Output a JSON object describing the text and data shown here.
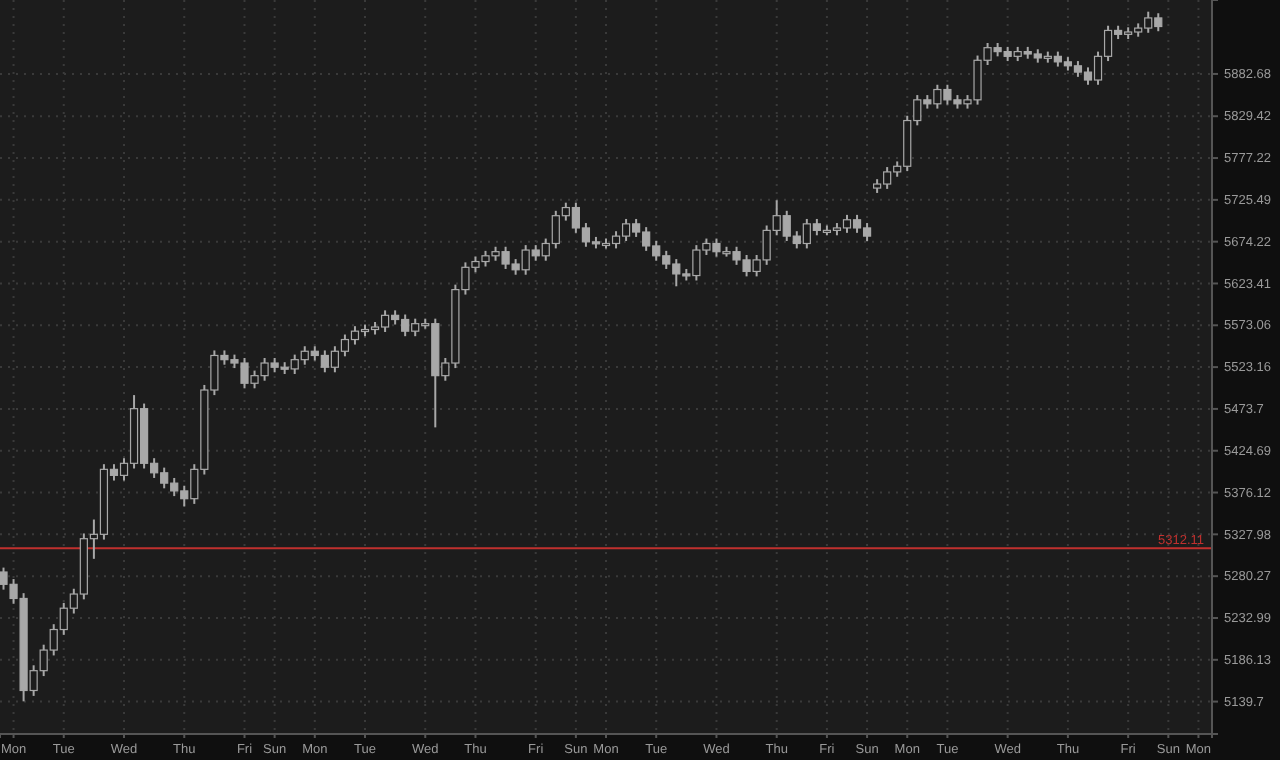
{
  "chart_data": {
    "type": "candlestick",
    "color": "#a8a8a8",
    "log": true,
    "grid": true,
    "ylim": [
      5104,
      5977
    ],
    "yticks": [
      5139.7,
      5186.13,
      5232.99,
      5280.27,
      5327.98,
      5376.12,
      5424.69,
      5473.7,
      5523.16,
      5573.06,
      5623.41,
      5674.22,
      5725.49,
      5777.22,
      5829.42,
      5882.68
    ],
    "ref_lines": [
      {
        "axis": "y",
        "value": 5312.11,
        "label": "5312.11",
        "color": "#c0302e"
      }
    ],
    "categories": [
      null,
      "Mon",
      null,
      null,
      null,
      null,
      "Tue",
      null,
      null,
      null,
      null,
      null,
      "Wed",
      null,
      null,
      null,
      null,
      null,
      "Thu",
      null,
      null,
      null,
      null,
      null,
      "Fri",
      null,
      null,
      "Sun",
      null,
      null,
      null,
      "Mon",
      null,
      null,
      null,
      null,
      "Tue",
      null,
      null,
      null,
      null,
      null,
      "Wed",
      null,
      null,
      null,
      null,
      "Thu",
      null,
      null,
      null,
      null,
      null,
      "Fri",
      null,
      null,
      null,
      "Sun",
      null,
      null,
      "Mon",
      null,
      null,
      null,
      null,
      "Tue",
      null,
      null,
      null,
      null,
      null,
      "Wed",
      null,
      null,
      null,
      null,
      null,
      "Thu",
      null,
      null,
      null,
      null,
      "Fri",
      null,
      null,
      null,
      "Sun",
      null,
      null,
      null,
      "Mon",
      null,
      null,
      null,
      "Tue",
      null,
      null,
      null,
      null,
      null,
      "Wed",
      null,
      null,
      null,
      null,
      null,
      "Thu",
      null,
      null,
      null,
      null,
      null,
      "Fri",
      null,
      null,
      null,
      "Sun",
      null,
      null,
      "Mon",
      null
    ],
    "ohlc": [
      [
        5285,
        5290,
        5265,
        5271
      ],
      [
        5271,
        5277,
        5249,
        5255
      ],
      [
        5255,
        5261,
        5140,
        5152
      ],
      [
        5152,
        5180,
        5146,
        5174
      ],
      [
        5174,
        5203,
        5168,
        5197
      ],
      [
        5197,
        5226,
        5191,
        5220
      ],
      [
        5220,
        5250,
        5214,
        5244
      ],
      [
        5244,
        5266,
        5238,
        5260
      ],
      [
        5260,
        5329,
        5254,
        5323
      ],
      [
        5323,
        5345,
        5300,
        5328
      ],
      [
        5328,
        5409,
        5322,
        5403
      ],
      [
        5403,
        5409,
        5390,
        5396
      ],
      [
        5396,
        5416,
        5390,
        5410
      ],
      [
        5410,
        5490,
        5404,
        5474
      ],
      [
        5474,
        5480,
        5404,
        5410
      ],
      [
        5410,
        5416,
        5393,
        5399
      ],
      [
        5399,
        5405,
        5381,
        5387
      ],
      [
        5387,
        5393,
        5372,
        5378
      ],
      [
        5378,
        5384,
        5360,
        5369
      ],
      [
        5369,
        5409,
        5363,
        5403
      ],
      [
        5403,
        5502,
        5397,
        5496
      ],
      [
        5496,
        5543,
        5490,
        5537
      ],
      [
        5537,
        5543,
        5526,
        5532
      ],
      [
        5532,
        5538,
        5522,
        5528
      ],
      [
        5528,
        5534,
        5498,
        5504
      ],
      [
        5504,
        5519,
        5498,
        5513
      ],
      [
        5513,
        5534,
        5507,
        5528
      ],
      [
        5528,
        5534,
        5517,
        5523
      ],
      [
        5523,
        5529,
        5515,
        5521
      ],
      [
        5521,
        5538,
        5515,
        5532
      ],
      [
        5532,
        5548,
        5526,
        5542
      ],
      [
        5542,
        5548,
        5531,
        5537
      ],
      [
        5537,
        5543,
        5517,
        5523
      ],
      [
        5523,
        5548,
        5517,
        5542
      ],
      [
        5542,
        5562,
        5536,
        5556
      ],
      [
        5556,
        5572,
        5550,
        5566
      ],
      [
        5566,
        5574,
        5560,
        5568
      ],
      [
        5568,
        5577,
        5562,
        5571
      ],
      [
        5571,
        5591,
        5565,
        5585
      ],
      [
        5585,
        5591,
        5574,
        5580
      ],
      [
        5580,
        5586,
        5560,
        5566
      ],
      [
        5566,
        5581,
        5560,
        5575
      ],
      [
        5575,
        5581,
        5569,
        5575
      ],
      [
        5575,
        5581,
        5452,
        5513
      ],
      [
        5513,
        5534,
        5507,
        5528
      ],
      [
        5528,
        5622,
        5522,
        5616
      ],
      [
        5616,
        5649,
        5610,
        5643
      ],
      [
        5643,
        5656,
        5637,
        5650
      ],
      [
        5650,
        5663,
        5644,
        5657
      ],
      [
        5657,
        5668,
        5651,
        5662
      ],
      [
        5662,
        5668,
        5641,
        5647
      ],
      [
        5647,
        5653,
        5634,
        5640
      ],
      [
        5640,
        5670,
        5634,
        5664
      ],
      [
        5664,
        5670,
        5651,
        5657
      ],
      [
        5657,
        5678,
        5651,
        5672
      ],
      [
        5672,
        5712,
        5666,
        5706
      ],
      [
        5706,
        5722,
        5700,
        5716
      ],
      [
        5716,
        5722,
        5685,
        5691
      ],
      [
        5691,
        5697,
        5668,
        5674
      ],
      [
        5674,
        5680,
        5666,
        5672
      ],
      [
        5672,
        5678,
        5666,
        5672
      ],
      [
        5672,
        5687,
        5666,
        5681
      ],
      [
        5681,
        5702,
        5675,
        5696
      ],
      [
        5696,
        5702,
        5680,
        5686
      ],
      [
        5686,
        5692,
        5663,
        5669
      ],
      [
        5669,
        5675,
        5651,
        5657
      ],
      [
        5657,
        5663,
        5641,
        5647
      ],
      [
        5647,
        5653,
        5620,
        5635
      ],
      [
        5635,
        5641,
        5627,
        5633
      ],
      [
        5633,
        5670,
        5627,
        5664
      ],
      [
        5664,
        5678,
        5658,
        5672
      ],
      [
        5672,
        5678,
        5656,
        5662
      ],
      [
        5662,
        5668,
        5656,
        5662
      ],
      [
        5662,
        5668,
        5646,
        5652
      ],
      [
        5652,
        5658,
        5632,
        5638
      ],
      [
        5638,
        5658,
        5632,
        5652
      ],
      [
        5652,
        5694,
        5646,
        5688
      ],
      [
        5688,
        5725,
        5682,
        5706
      ],
      [
        5706,
        5712,
        5675,
        5681
      ],
      [
        5681,
        5687,
        5666,
        5672
      ],
      [
        5672,
        5702,
        5666,
        5696
      ],
      [
        5696,
        5702,
        5682,
        5688
      ],
      [
        5688,
        5694,
        5682,
        5688
      ],
      [
        5688,
        5697,
        5682,
        5691
      ],
      [
        5691,
        5707,
        5685,
        5701
      ],
      [
        5701,
        5707,
        5685,
        5691
      ],
      [
        5691,
        5697,
        5675,
        5681
      ],
      [
        5740,
        5751,
        5734,
        5745
      ],
      [
        5745,
        5766,
        5739,
        5760
      ],
      [
        5760,
        5773,
        5754,
        5767
      ],
      [
        5767,
        5830,
        5761,
        5824
      ],
      [
        5824,
        5856,
        5818,
        5850
      ],
      [
        5850,
        5856,
        5839,
        5845
      ],
      [
        5845,
        5869,
        5839,
        5863
      ],
      [
        5863,
        5869,
        5844,
        5850
      ],
      [
        5850,
        5856,
        5839,
        5845
      ],
      [
        5845,
        5856,
        5839,
        5850
      ],
      [
        5850,
        5906,
        5844,
        5900
      ],
      [
        5900,
        5922,
        5894,
        5916
      ],
      [
        5916,
        5922,
        5905,
        5911
      ],
      [
        5911,
        5917,
        5899,
        5905
      ],
      [
        5905,
        5917,
        5899,
        5911
      ],
      [
        5911,
        5917,
        5902,
        5908
      ],
      [
        5908,
        5914,
        5897,
        5903
      ],
      [
        5903,
        5911,
        5897,
        5905
      ],
      [
        5905,
        5911,
        5892,
        5898
      ],
      [
        5898,
        5904,
        5887,
        5893
      ],
      [
        5893,
        5899,
        5879,
        5885
      ],
      [
        5885,
        5891,
        5869,
        5875
      ],
      [
        5875,
        5911,
        5869,
        5905
      ],
      [
        5905,
        5944,
        5899,
        5938
      ],
      [
        5938,
        5944,
        5927,
        5933
      ],
      [
        5933,
        5942,
        5927,
        5936
      ],
      [
        5936,
        5947,
        5930,
        5941
      ],
      [
        5941,
        5962,
        5935,
        5954
      ],
      [
        5954,
        5960,
        5937,
        5943
      ],
      null,
      null,
      null,
      null,
      null
    ]
  }
}
